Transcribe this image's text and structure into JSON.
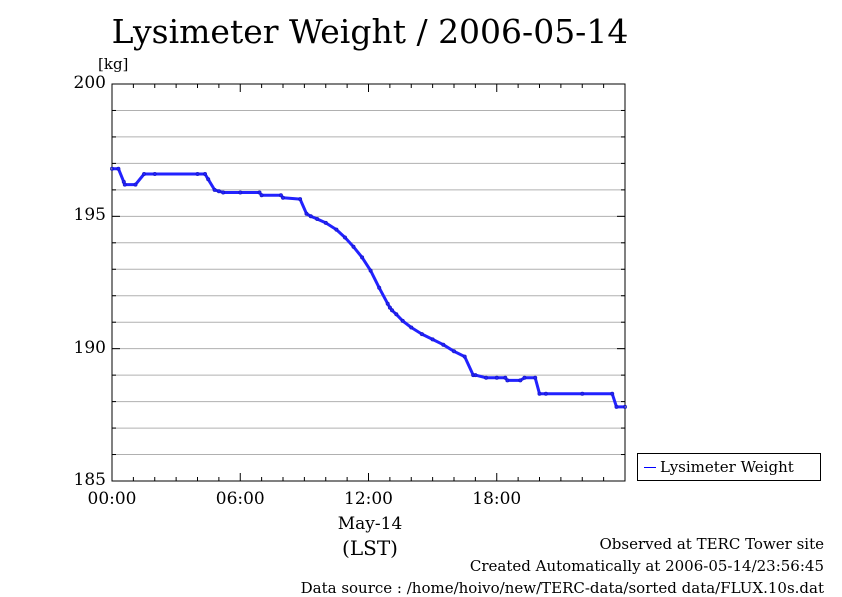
{
  "page": {
    "title": "Lysimeter Weight / 2006-05-14",
    "footer": [
      "Observed at TERC Tower site",
      "Created Automatically at 2006-05-14/23:56:45",
      "Data source : /home/hoivo/new/TERC-data/sorted  data/FLUX.10s.dat"
    ]
  },
  "chart_data": {
    "type": "line",
    "title": "Lysimeter Weight / 2006-05-14",
    "ylabel": "[kg]",
    "xlabel": "(LST)",
    "x_date_label": "May-14",
    "ylim": [
      185,
      200
    ],
    "xlim": [
      0,
      24
    ],
    "yticks": [
      185,
      190,
      195,
      200
    ],
    "ytick_labels": [
      "185",
      "190",
      "195",
      "200"
    ],
    "xticks": [
      0,
      6,
      12,
      18
    ],
    "xtick_labels": [
      "00:00",
      "06:00",
      "12:00",
      "18:00"
    ],
    "grid": true,
    "legend": "bottom-right outside",
    "line_color": "#2222ff",
    "series": [
      {
        "name": "Lysimeter Weight",
        "x": [
          0.0,
          0.3,
          0.55,
          0.6,
          1.1,
          1.5,
          2.0,
          4.0,
          4.35,
          4.5,
          4.8,
          5.0,
          5.2,
          6.0,
          6.9,
          7.0,
          7.9,
          8.0,
          8.8,
          9.1,
          9.3,
          9.6,
          10.0,
          10.5,
          10.9,
          11.3,
          11.7,
          12.1,
          12.5,
          12.9,
          13.0,
          13.1,
          13.3,
          13.6,
          14.0,
          14.5,
          15.0,
          15.5,
          16.0,
          16.5,
          16.9,
          17.0,
          17.5,
          18.0,
          18.4,
          18.5,
          19.1,
          19.3,
          19.8,
          20.0,
          20.3,
          22.0,
          23.4,
          23.6,
          24.0
        ],
        "y": [
          196.8,
          196.8,
          196.3,
          196.2,
          196.2,
          196.6,
          196.6,
          196.6,
          196.6,
          196.4,
          196.0,
          195.95,
          195.9,
          195.9,
          195.9,
          195.8,
          195.8,
          195.7,
          195.65,
          195.1,
          195.0,
          194.9,
          194.75,
          194.5,
          194.2,
          193.85,
          193.45,
          192.95,
          192.3,
          191.7,
          191.55,
          191.45,
          191.3,
          191.05,
          190.8,
          190.55,
          190.35,
          190.15,
          189.9,
          189.7,
          189.0,
          189.0,
          188.9,
          188.9,
          188.9,
          188.8,
          188.8,
          188.9,
          188.9,
          188.3,
          188.3,
          188.3,
          188.3,
          187.8,
          187.8
        ]
      }
    ]
  }
}
